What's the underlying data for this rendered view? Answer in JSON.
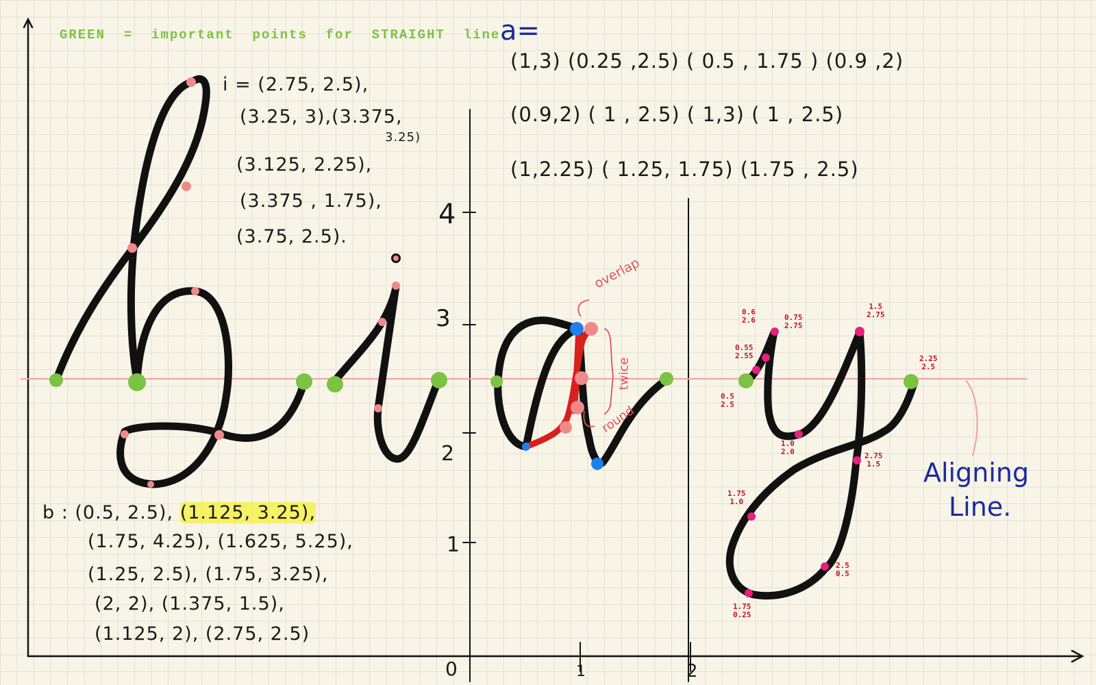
{
  "header": {
    "legend_text": "GREEN  =  important  points  for  STRAIGHT  line ."
  },
  "a_notes": {
    "label": "a=",
    "row1": "(1,3)  (0.25 ,2.5) ( 0.5 , 1.75 )  (0.9 ,2)",
    "row2": "(0.9,2) ( 1 , 2.5) ( 1,3)  ( 1 , 2.5)",
    "row3": "(1,2.25)  ( 1.25, 1.75) (1.75 , 2.5)"
  },
  "i_notes": {
    "l1": "i = (2.75, 2.5),",
    "l2": "(3.25, 3),(3.375,",
    "l3": "3.25)",
    "l4": "(3.125, 2.25),",
    "l5": "(3.375 , 1.75),",
    "l6": "(3.75, 2.5)."
  },
  "b_notes": {
    "l1_prefix": "b : (0.5, 2.5),",
    "l1_highlight": "(1.125, 3.25),",
    "l2": "(1.75, 4.25), (1.625, 5.25),",
    "l3": "(1.25, 2.5), (1.75, 3.25),",
    "l4": "(2, 2), (1.375, 1.5),",
    "l5": "(1.125, 2), (2.75, 2.5)"
  },
  "axis": {
    "y_ticks": [
      "4",
      "3",
      "2",
      "1"
    ],
    "x_ticks": [
      "0",
      "1",
      "2"
    ]
  },
  "a_annotations": {
    "overlap": "overlap",
    "twice": "twice",
    "round": "round"
  },
  "y_points": {
    "p1": [
      "0.5",
      "2.5"
    ],
    "p2": [
      "0.55",
      "2.55"
    ],
    "p3": [
      "0.6",
      "2.6"
    ],
    "p4": [
      "0.75",
      "2.75"
    ],
    "p5": [
      "1.0",
      "2.0"
    ],
    "p6": [
      "1.5",
      "2.75"
    ],
    "p7": [
      "2.25",
      "2.5"
    ],
    "p8": [
      "2.75",
      "1.5"
    ],
    "p9": [
      "1.75",
      "1.0"
    ],
    "p10": [
      "2.5",
      "0.5"
    ],
    "p11": [
      "1.75",
      "0.25"
    ]
  },
  "aligning_label": {
    "l1": "Aligning",
    "l2": "Line."
  },
  "colors": {
    "ink": "#111111",
    "green": "#7cc243",
    "salmon": "#f08a8a",
    "magenta": "#e8207c",
    "blue": "#1f7fe8",
    "red": "#d8201e",
    "align_line": "#f0a0a0",
    "label_blue": "#1a2aa0"
  }
}
